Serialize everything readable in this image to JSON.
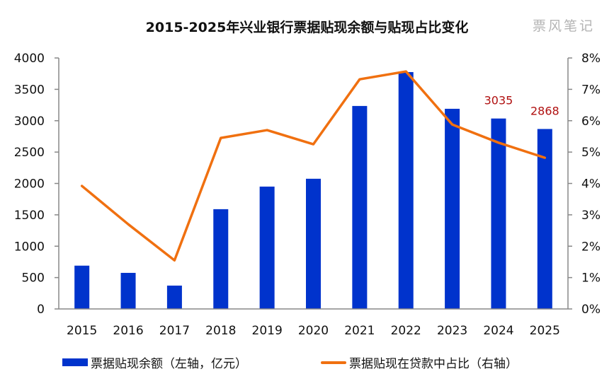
{
  "watermark": "票风笔记",
  "colors": {
    "bar": "#0033cc",
    "line": "#f07010",
    "label": "#b01010",
    "axis": "#888888"
  },
  "chart_data": {
    "type": "bar+line",
    "title": "2015-2025年兴业银行票据贴现余额与贴现占比变化",
    "categories": [
      "2015",
      "2016",
      "2017",
      "2018",
      "2019",
      "2020",
      "2021",
      "2022",
      "2023",
      "2024",
      "2025"
    ],
    "series": [
      {
        "name": "票据贴现余额（左轴，亿元）",
        "type": "bar",
        "axis": "left",
        "values": [
          690,
          575,
          372,
          1590,
          1950,
          2075,
          3235,
          3775,
          3190,
          3035,
          2868
        ]
      },
      {
        "name": "票据贴现在贷款中占比（右轴）",
        "type": "line",
        "axis": "right",
        "values": [
          3.92,
          2.7,
          1.55,
          5.45,
          5.7,
          5.25,
          7.32,
          7.57,
          5.88,
          5.3,
          4.82
        ]
      }
    ],
    "data_labels": [
      {
        "category": "2024",
        "text": "3035"
      },
      {
        "category": "2025",
        "text": "2868"
      }
    ],
    "left_axis": {
      "ylim": [
        0,
        4000
      ],
      "ticks": [
        "0",
        "500",
        "1000",
        "1500",
        "2000",
        "2500",
        "3000",
        "3500",
        "4000"
      ]
    },
    "right_axis": {
      "ylim": [
        0,
        8
      ],
      "ticks": [
        "0%",
        "1%",
        "2%",
        "3%",
        "4%",
        "5%",
        "6%",
        "7%",
        "8%"
      ]
    },
    "grid": false,
    "legend_position": "bottom"
  }
}
